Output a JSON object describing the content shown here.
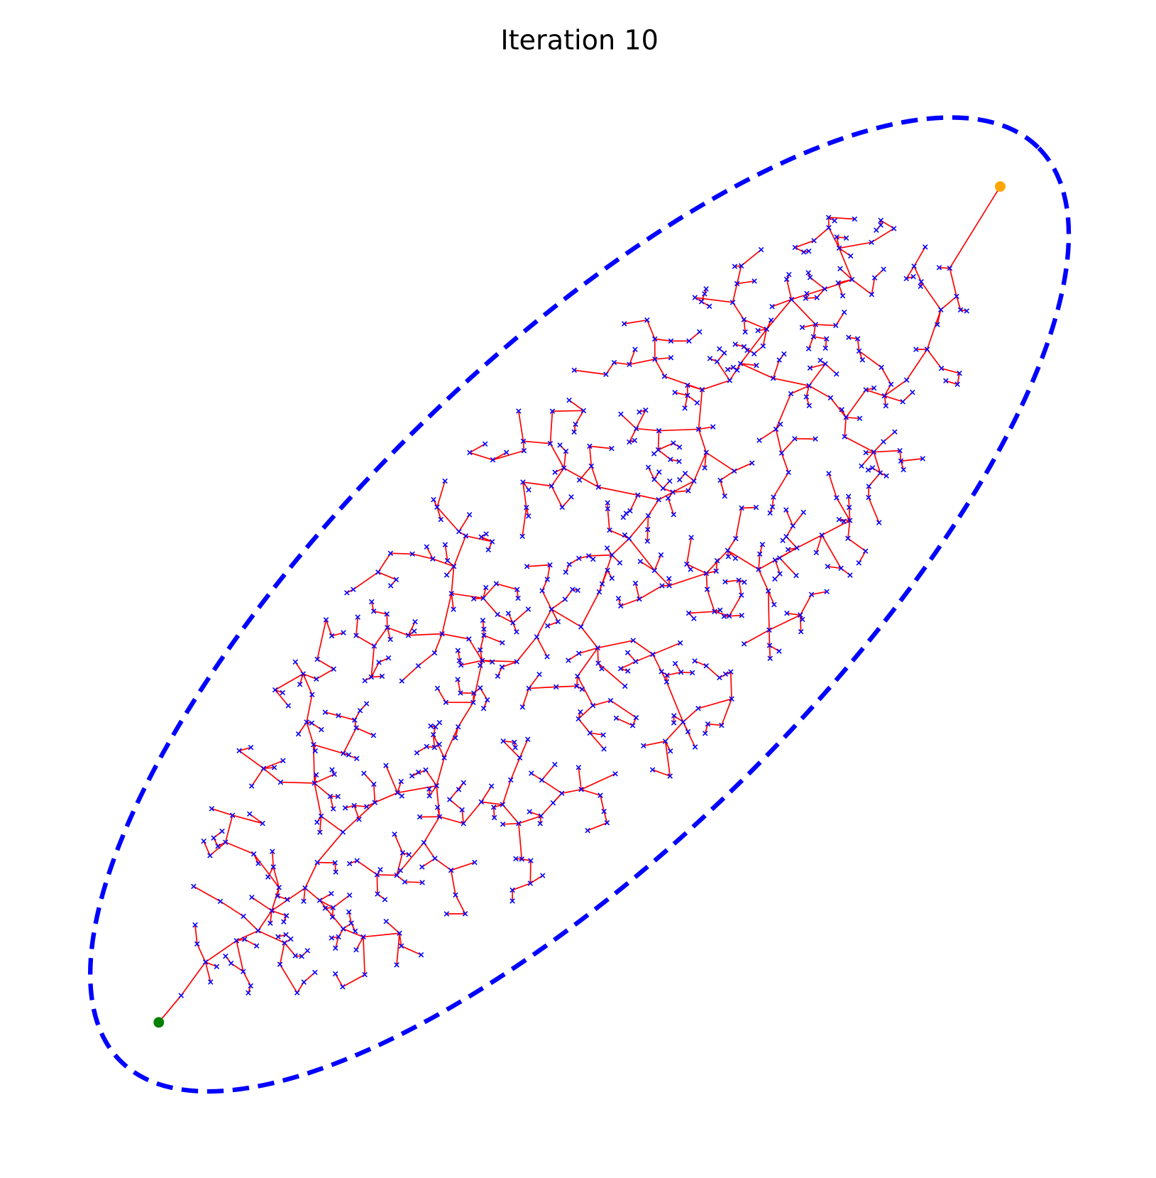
{
  "title": "Iteration 10"
}
